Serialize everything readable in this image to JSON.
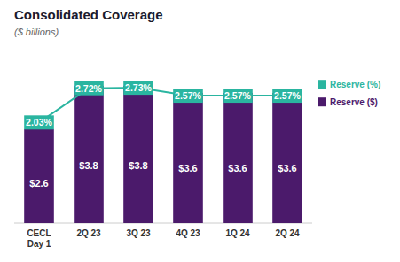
{
  "chart_data": {
    "type": "bar",
    "title": "Consolidated Coverage",
    "subtitle": "($ billions)",
    "categories": [
      "CECL\nDay 1",
      "2Q 23",
      "3Q 23",
      "4Q 23",
      "1Q 24",
      "2Q 24"
    ],
    "series": [
      {
        "name": "Reserve ($)",
        "color": "#4b1a6b",
        "values": [
          2.6,
          3.8,
          3.8,
          3.6,
          3.6,
          3.6
        ],
        "value_labels": [
          "$2.6",
          "$3.8",
          "$3.8",
          "$3.6",
          "$3.6",
          "$3.6"
        ]
      },
      {
        "name": "Reserve (%)",
        "type": "line",
        "axis": "y2",
        "color": "#2ab5a0",
        "values": [
          2.03,
          2.72,
          2.73,
          2.57,
          2.57,
          2.57
        ],
        "value_labels": [
          "2.03%",
          "2.72%",
          "2.73%",
          "2.57%",
          "2.57%",
          "2.57%"
        ]
      }
    ],
    "ylim": [
      0,
      4.8
    ],
    "yticks": [
      0
    ],
    "y2lim": [
      0,
      3.5
    ],
    "data_labels": true,
    "tick_labels": "x",
    "grid": false,
    "legend": "right"
  }
}
